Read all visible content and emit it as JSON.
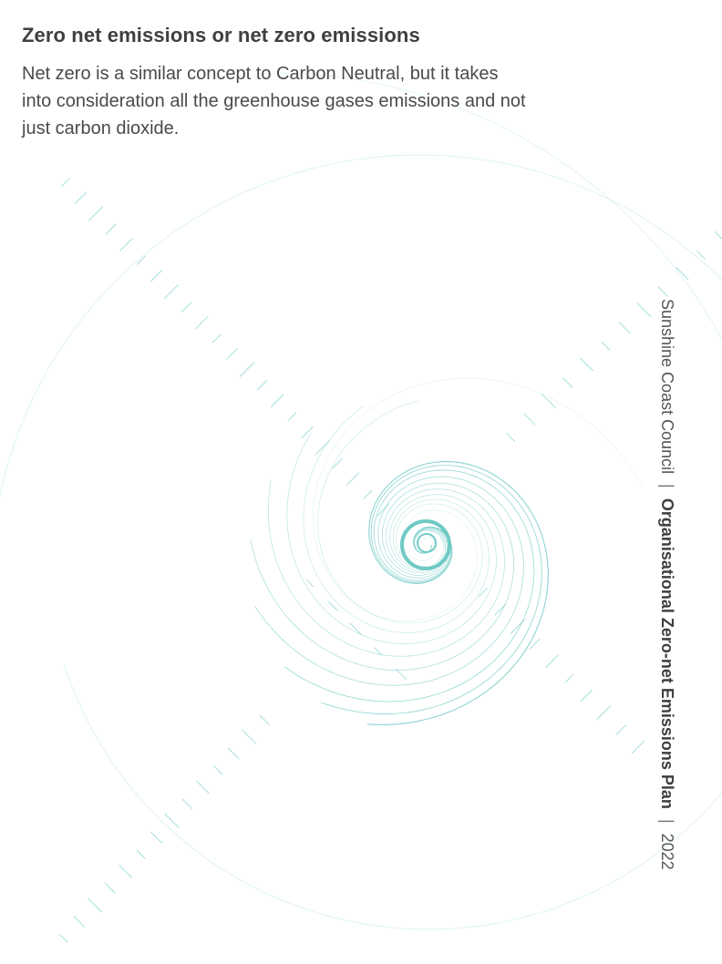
{
  "section": {
    "heading": "Zero net emissions or net zero emissions",
    "body": "Net zero is a similar concept to Carbon Neutral, but it takes into consideration all the greenhouse gases emissions and not just carbon dioxide."
  },
  "footer": {
    "organisation": "Sunshine Coast Council",
    "separator": "|",
    "document_title": "Organisational Zero-net Emissions Plan",
    "year": "2022"
  },
  "decoration": {
    "name": "spiral-graphic",
    "line_color": "#7fd0cc",
    "center_color": "#6fc9c4"
  }
}
